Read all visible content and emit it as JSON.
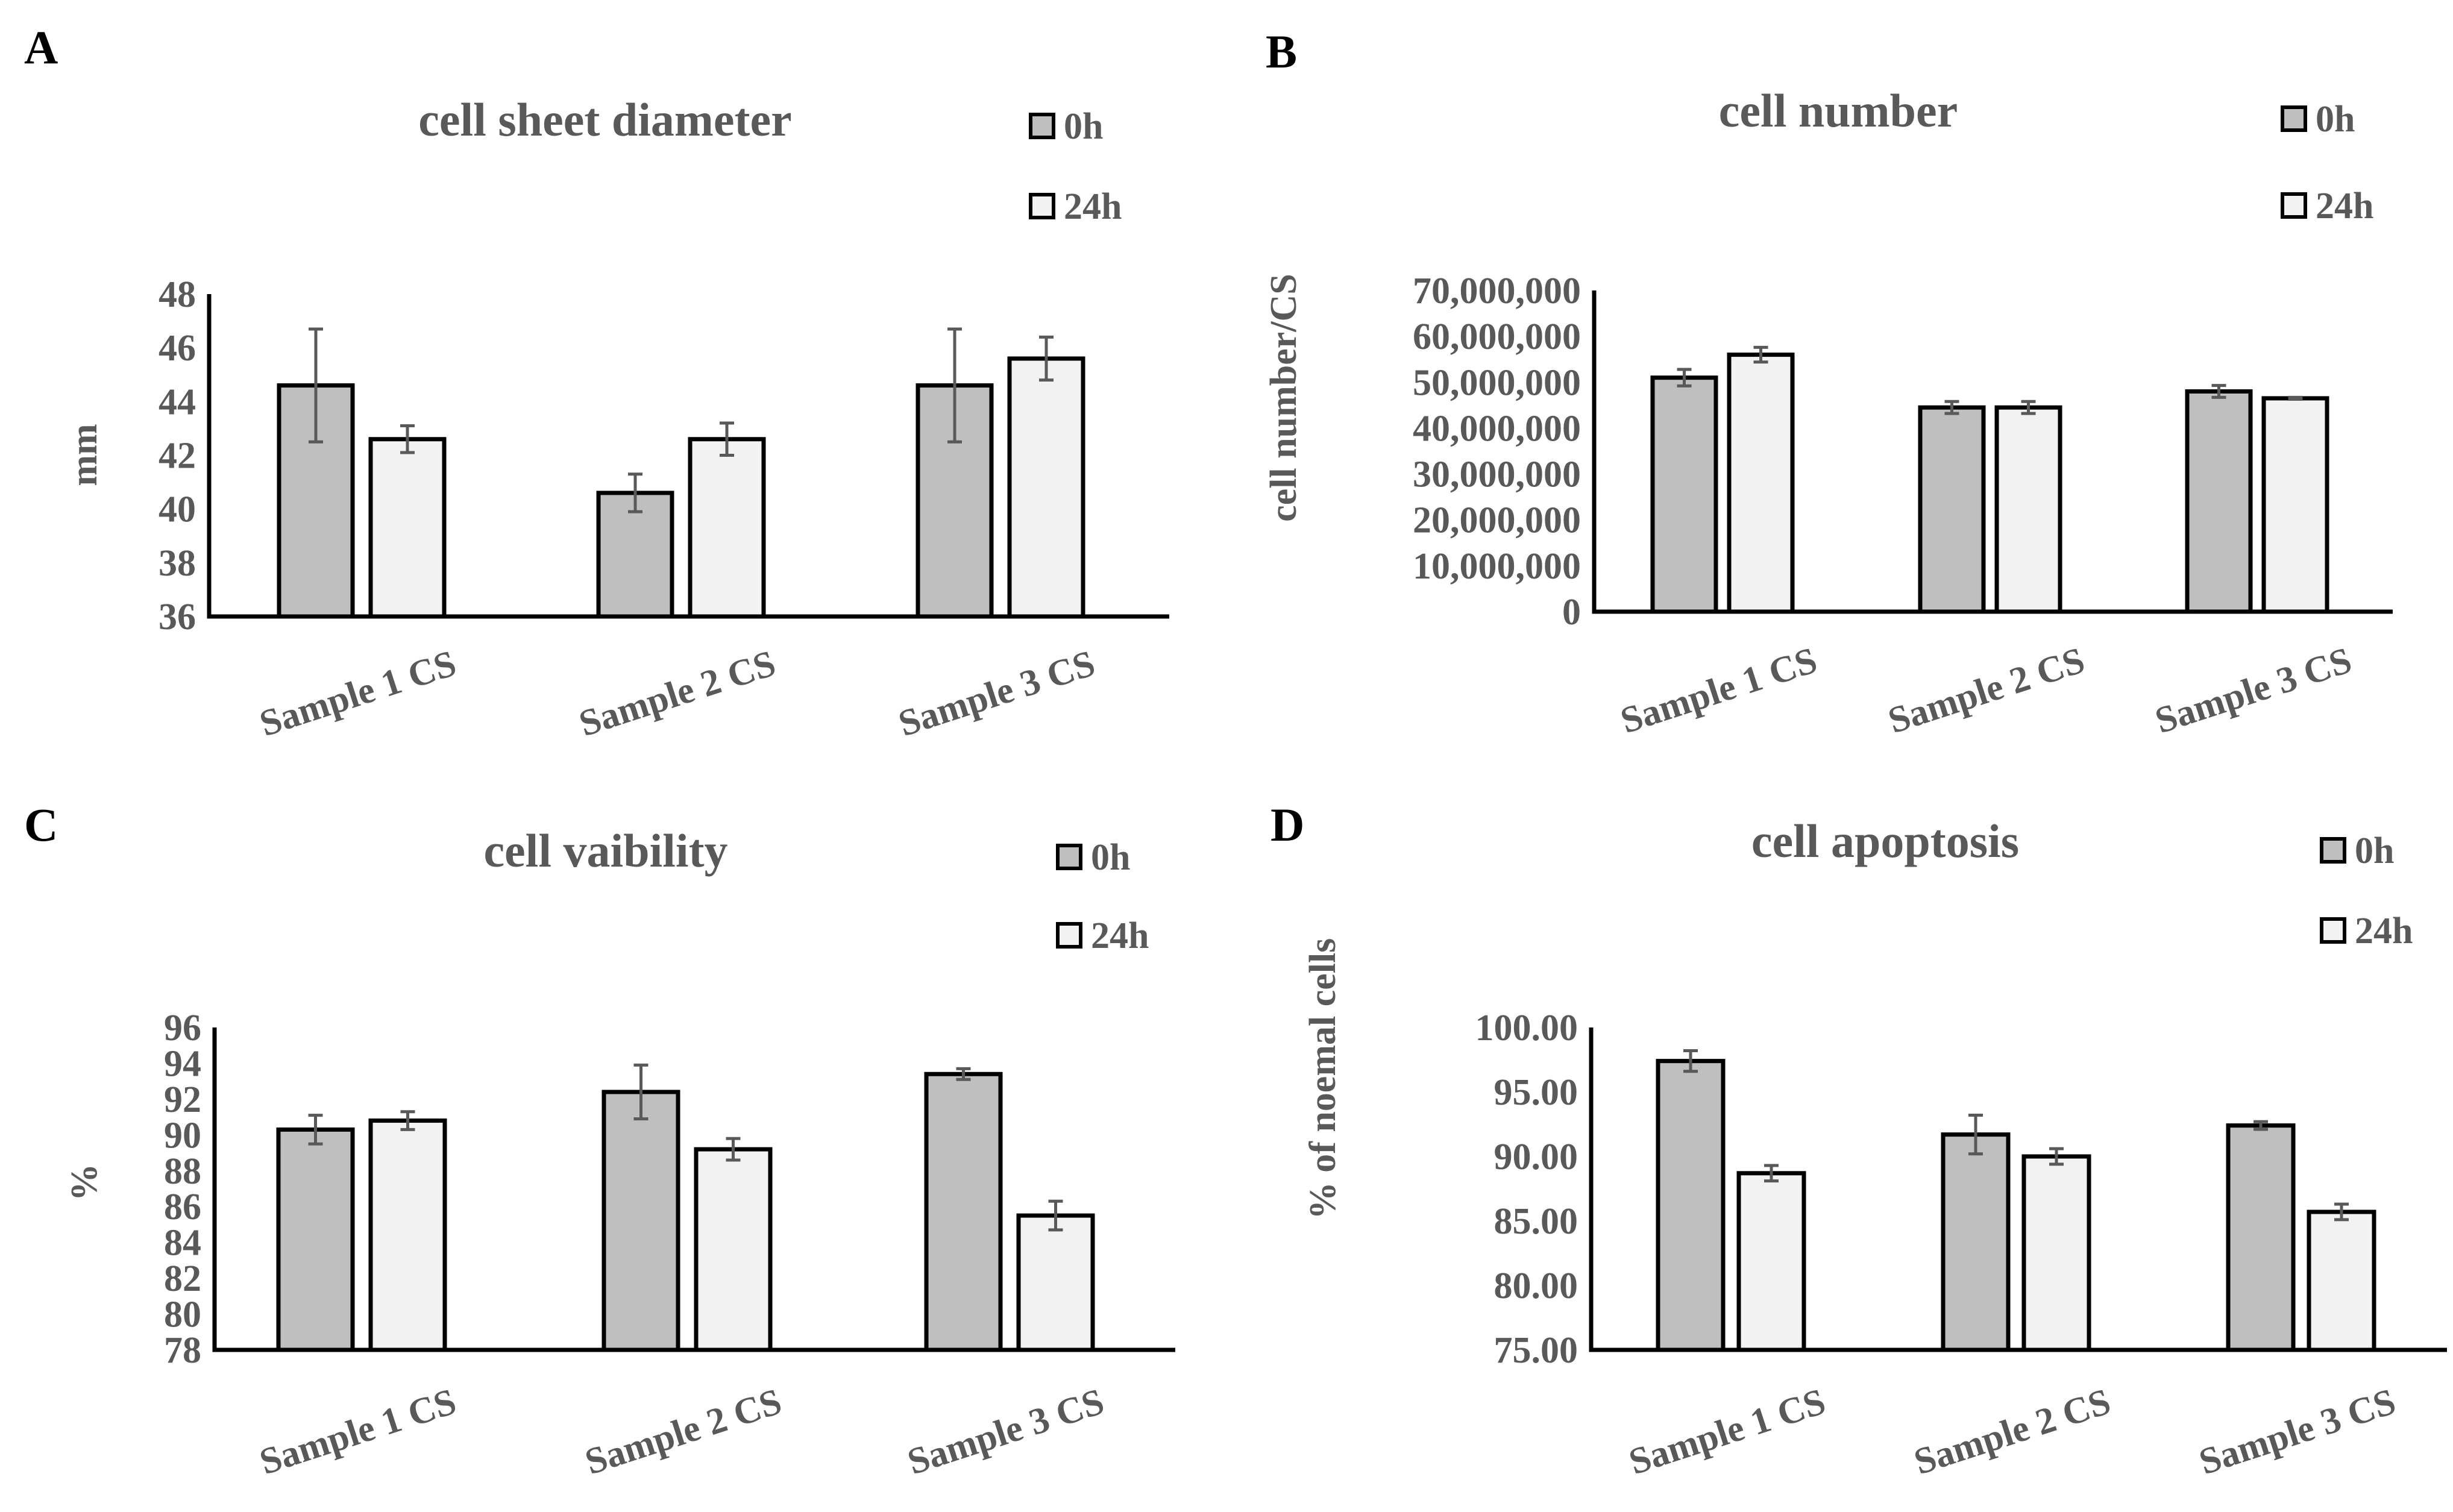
{
  "colors": {
    "series_0h": "#bfbfbf",
    "series_24h": "#f2f2f2"
  },
  "chart_data": [
    {
      "panel": "A",
      "type": "bar",
      "title": "cell sheet diameter",
      "xlabel": "",
      "ylabel": "mm",
      "ylim": [
        36,
        48
      ],
      "yticks": [
        36,
        38,
        40,
        42,
        44,
        46,
        48
      ],
      "ytick_labels": [
        "36",
        "38",
        "40",
        "42",
        "44",
        "46",
        "48"
      ],
      "categories": [
        "Sample 1 CS",
        "Sample 2 CS",
        "Sample 3 CS"
      ],
      "legend_position": "top-right",
      "series": [
        {
          "name": "0h",
          "values": [
            44.6,
            40.6,
            44.6
          ],
          "errors": [
            2.1,
            0.7,
            2.1
          ]
        },
        {
          "name": "24h",
          "values": [
            42.6,
            42.6,
            45.6
          ],
          "errors": [
            0.5,
            0.6,
            0.8
          ]
        }
      ]
    },
    {
      "panel": "B",
      "type": "bar",
      "title": "cell number",
      "xlabel": "",
      "ylabel": "cell number/CS",
      "ylim": [
        0,
        70000000
      ],
      "yticks": [
        0,
        10000000,
        20000000,
        30000000,
        40000000,
        50000000,
        60000000,
        70000000
      ],
      "ytick_labels": [
        "0",
        "10,000,000",
        "20,000,000",
        "30,000,000",
        "40,000,000",
        "50,000,000",
        "60,000,000",
        "70,000,000"
      ],
      "categories": [
        "Sample 1 CS",
        "Sample 2 CS",
        "Sample 3 CS"
      ],
      "legend_position": "top-right",
      "series": [
        {
          "name": "0h",
          "values": [
            51000000,
            44500000,
            48000000
          ],
          "errors": [
            1800000,
            1300000,
            1300000
          ]
        },
        {
          "name": "24h",
          "values": [
            56000000,
            44500000,
            46500000
          ],
          "errors": [
            1600000,
            1300000,
            200000
          ]
        }
      ]
    },
    {
      "panel": "C",
      "type": "bar",
      "title": "cell vaibility",
      "xlabel": "",
      "ylabel": "%",
      "ylim": [
        78,
        96
      ],
      "yticks": [
        78,
        80,
        82,
        84,
        86,
        88,
        90,
        92,
        94,
        96
      ],
      "ytick_labels": [
        "78",
        "80",
        "82",
        "84",
        "86",
        "88",
        "90",
        "92",
        "94",
        "96"
      ],
      "categories": [
        "Sample 1 CS",
        "Sample 2 CS",
        "Sample 3 CS"
      ],
      "legend_position": "top-right",
      "series": [
        {
          "name": "0h",
          "values": [
            90.3,
            92.4,
            93.4
          ],
          "errors": [
            0.8,
            1.5,
            0.3
          ]
        },
        {
          "name": "24h",
          "values": [
            90.8,
            89.2,
            85.5
          ],
          "errors": [
            0.5,
            0.6,
            0.8
          ]
        }
      ]
    },
    {
      "panel": "D",
      "type": "bar",
      "title": "cell apoptosis",
      "xlabel": "",
      "ylabel": "% of noemal cells",
      "ylim": [
        75,
        100
      ],
      "yticks": [
        75,
        80,
        85,
        90,
        95,
        100
      ],
      "ytick_labels": [
        "75.00",
        "80.00",
        "85.00",
        "90.00",
        "95.00",
        "100.00"
      ],
      "categories": [
        "Sample 1 CS",
        "Sample 2 CS",
        "Sample 3 CS"
      ],
      "legend_position": "top-right",
      "series": [
        {
          "name": "0h",
          "values": [
            97.4,
            91.7,
            92.4
          ],
          "errors": [
            0.8,
            1.5,
            0.3
          ]
        },
        {
          "name": "24h",
          "values": [
            88.7,
            90.0,
            85.7
          ],
          "errors": [
            0.6,
            0.6,
            0.6
          ]
        }
      ]
    }
  ]
}
